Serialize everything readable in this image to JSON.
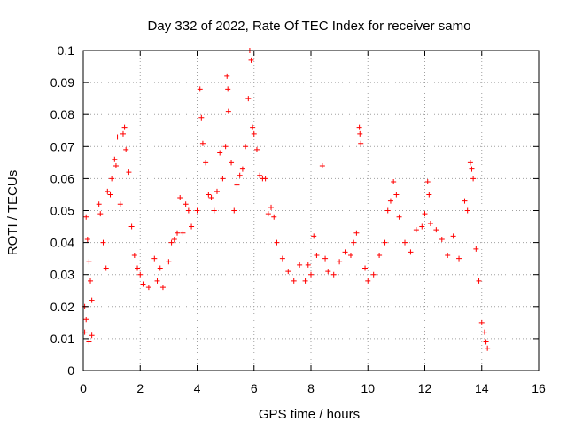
{
  "chart_data": {
    "type": "scatter",
    "title": "Day 332 of 2022, Rate Of TEC Index for receiver samo",
    "xlabel": "GPS time / hours",
    "ylabel": "ROTI / TECUs",
    "xlim": [
      0,
      16
    ],
    "ylim": [
      0,
      0.1
    ],
    "x_ticks": [
      "0",
      "2",
      "4",
      "6",
      "8",
      "10",
      "12",
      "14",
      "16"
    ],
    "y_ticks": [
      "0",
      "0.01",
      "0.02",
      "0.03",
      "0.04",
      "0.05",
      "0.06",
      "0.07",
      "0.08",
      "0.09",
      "0.1"
    ],
    "grid": true,
    "grid_style": "dotted",
    "legend": "none",
    "marker": "plus",
    "marker_color": "#ff0000",
    "series": [
      {
        "points": [
          [
            0.05,
            0.012
          ],
          [
            0.1,
            0.048
          ],
          [
            0.15,
            0.041
          ],
          [
            0.2,
            0.034
          ],
          [
            0.25,
            0.028
          ],
          [
            0.3,
            0.022
          ],
          [
            0.05,
            0.02
          ],
          [
            0.1,
            0.016
          ],
          [
            0.2,
            0.009
          ],
          [
            0.3,
            0.011
          ],
          [
            0.55,
            0.052
          ],
          [
            0.6,
            0.049
          ],
          [
            0.7,
            0.04
          ],
          [
            0.8,
            0.032
          ],
          [
            0.85,
            0.056
          ],
          [
            0.95,
            0.055
          ],
          [
            1.0,
            0.06
          ],
          [
            1.1,
            0.066
          ],
          [
            1.15,
            0.064
          ],
          [
            1.2,
            0.073
          ],
          [
            1.3,
            0.052
          ],
          [
            1.4,
            0.074
          ],
          [
            1.45,
            0.076
          ],
          [
            1.5,
            0.069
          ],
          [
            1.6,
            0.062
          ],
          [
            1.7,
            0.045
          ],
          [
            1.8,
            0.036
          ],
          [
            1.9,
            0.032
          ],
          [
            2.0,
            0.03
          ],
          [
            2.1,
            0.027
          ],
          [
            2.3,
            0.026
          ],
          [
            2.5,
            0.035
          ],
          [
            2.6,
            0.028
          ],
          [
            2.7,
            0.032
          ],
          [
            2.8,
            0.026
          ],
          [
            3.0,
            0.034
          ],
          [
            3.1,
            0.04
          ],
          [
            3.2,
            0.041
          ],
          [
            3.3,
            0.043
          ],
          [
            3.4,
            0.054
          ],
          [
            3.5,
            0.043
          ],
          [
            3.6,
            0.052
          ],
          [
            3.7,
            0.05
          ],
          [
            3.8,
            0.045
          ],
          [
            4.0,
            0.05
          ],
          [
            4.1,
            0.088
          ],
          [
            4.15,
            0.079
          ],
          [
            4.2,
            0.071
          ],
          [
            4.3,
            0.065
          ],
          [
            4.4,
            0.055
          ],
          [
            4.5,
            0.054
          ],
          [
            4.6,
            0.05
          ],
          [
            4.7,
            0.056
          ],
          [
            4.8,
            0.068
          ],
          [
            4.9,
            0.06
          ],
          [
            5.0,
            0.07
          ],
          [
            5.05,
            0.092
          ],
          [
            5.08,
            0.088
          ],
          [
            5.1,
            0.081
          ],
          [
            5.2,
            0.065
          ],
          [
            5.3,
            0.05
          ],
          [
            5.4,
            0.058
          ],
          [
            5.5,
            0.061
          ],
          [
            5.6,
            0.063
          ],
          [
            5.7,
            0.07
          ],
          [
            5.8,
            0.085
          ],
          [
            5.85,
            0.1
          ],
          [
            5.9,
            0.097
          ],
          [
            5.95,
            0.076
          ],
          [
            6.0,
            0.074
          ],
          [
            6.1,
            0.069
          ],
          [
            6.2,
            0.061
          ],
          [
            6.3,
            0.06
          ],
          [
            6.4,
            0.06
          ],
          [
            6.5,
            0.049
          ],
          [
            6.6,
            0.051
          ],
          [
            6.7,
            0.048
          ],
          [
            6.8,
            0.04
          ],
          [
            7.0,
            0.035
          ],
          [
            7.2,
            0.031
          ],
          [
            7.4,
            0.028
          ],
          [
            7.6,
            0.033
          ],
          [
            7.8,
            0.028
          ],
          [
            7.9,
            0.033
          ],
          [
            8.0,
            0.03
          ],
          [
            8.1,
            0.042
          ],
          [
            8.2,
            0.036
          ],
          [
            8.4,
            0.064
          ],
          [
            8.5,
            0.035
          ],
          [
            8.6,
            0.031
          ],
          [
            8.8,
            0.03
          ],
          [
            9.0,
            0.034
          ],
          [
            9.2,
            0.037
          ],
          [
            9.4,
            0.036
          ],
          [
            9.5,
            0.04
          ],
          [
            9.6,
            0.043
          ],
          [
            9.7,
            0.076
          ],
          [
            9.72,
            0.074
          ],
          [
            9.75,
            0.071
          ],
          [
            9.9,
            0.032
          ],
          [
            10.0,
            0.028
          ],
          [
            10.2,
            0.03
          ],
          [
            10.4,
            0.036
          ],
          [
            10.6,
            0.04
          ],
          [
            10.7,
            0.05
          ],
          [
            10.8,
            0.053
          ],
          [
            10.9,
            0.059
          ],
          [
            11.0,
            0.055
          ],
          [
            11.1,
            0.048
          ],
          [
            11.3,
            0.04
          ],
          [
            11.5,
            0.037
          ],
          [
            11.7,
            0.044
          ],
          [
            11.9,
            0.045
          ],
          [
            12.0,
            0.049
          ],
          [
            12.1,
            0.059
          ],
          [
            12.15,
            0.055
          ],
          [
            12.2,
            0.046
          ],
          [
            12.4,
            0.044
          ],
          [
            12.6,
            0.041
          ],
          [
            12.8,
            0.036
          ],
          [
            13.0,
            0.042
          ],
          [
            13.2,
            0.035
          ],
          [
            13.4,
            0.053
          ],
          [
            13.5,
            0.05
          ],
          [
            13.6,
            0.065
          ],
          [
            13.65,
            0.063
          ],
          [
            13.7,
            0.06
          ],
          [
            13.8,
            0.038
          ],
          [
            13.9,
            0.028
          ],
          [
            14.0,
            0.015
          ],
          [
            14.1,
            0.012
          ],
          [
            14.15,
            0.009
          ],
          [
            14.2,
            0.007
          ]
        ]
      }
    ]
  }
}
